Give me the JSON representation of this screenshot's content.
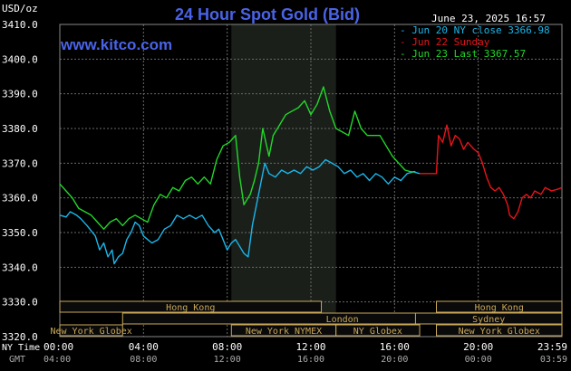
{
  "header": {
    "unit": "USD/oz",
    "title": "24 Hour Spot Gold (Bid)",
    "date": "June 23, 2025 16:57",
    "site": "www.kitco.com"
  },
  "legend": [
    {
      "label": "- Jun 20 NY close 3366.98",
      "color": "#19b7ea"
    },
    {
      "label": "- Jun 22 Sunday",
      "color": "#e8141a"
    },
    {
      "label": "- Jun 23 Last 3367.57",
      "color": "#21d829"
    }
  ],
  "colors": {
    "background": "#000000",
    "grid": "#6a6a6a",
    "axis_text": "#ffffff",
    "title": "#4a63e6",
    "site": "#4a63e6",
    "session_highlight": "#1a1f1a",
    "session_fill": "#0a0a0a",
    "session_border": "#caa85a",
    "session_text": "#caa85a"
  },
  "axis_labels": {
    "ny_time": "NY Time",
    "gmt": "GMT"
  },
  "sessions": [
    {
      "label": "Hong Kong",
      "start": 0,
      "end": 12.5,
      "row": 1
    },
    {
      "label": "London",
      "start": 3,
      "end": 25,
      "row": 2
    },
    {
      "label": "New York Globex",
      "start": 0,
      "end": 3,
      "row": 3
    },
    {
      "label": "New York NYMEX",
      "start": 8.2,
      "end": 13.2,
      "row": 3
    },
    {
      "label": "NY Globex",
      "start": 13.2,
      "end": 17.2,
      "row": 3
    },
    {
      "label": "Hong Kong",
      "start": 18,
      "end": 24,
      "row": 1
    },
    {
      "label": "Sydney",
      "start": 17,
      "end": 24,
      "row": 2
    },
    {
      "label": "New York Globex",
      "start": 18,
      "end": 24,
      "row": 3
    }
  ],
  "chart_data": {
    "type": "line",
    "ylim": [
      3320,
      3410
    ],
    "yticks": [
      3320,
      3330,
      3340,
      3350,
      3360,
      3370,
      3380,
      3390,
      3400,
      3410
    ],
    "ytick_labels": [
      "3320.0",
      "3330.0",
      "3340.0",
      "3350.0",
      "3360.0",
      "3370.0",
      "3380.0",
      "3390.0",
      "3400.0",
      "3410.0"
    ],
    "xlim": [
      0,
      24
    ],
    "xticks": [
      0,
      4,
      8,
      12,
      16,
      20,
      24
    ],
    "xtick_labels_ny": [
      "00:00",
      "04:00",
      "08:00",
      "12:00",
      "16:00",
      "20:00",
      "23:59"
    ],
    "xtick_labels_gmt": [
      "04:00",
      "08:00",
      "12:00",
      "16:00",
      "20:00",
      "00:00",
      "03:59"
    ],
    "highlight_range": [
      8.2,
      13.2
    ],
    "series": [
      {
        "name": "Jun 20 NY close 3366.98",
        "color": "#19b7ea",
        "points": [
          [
            0,
            3355
          ],
          [
            0.3,
            3354.5
          ],
          [
            0.5,
            3356
          ],
          [
            0.8,
            3355
          ],
          [
            1,
            3354
          ],
          [
            1.3,
            3352
          ],
          [
            1.5,
            3350.5
          ],
          [
            1.7,
            3349
          ],
          [
            1.9,
            3345
          ],
          [
            2.1,
            3347
          ],
          [
            2.3,
            3343
          ],
          [
            2.5,
            3345
          ],
          [
            2.6,
            3341
          ],
          [
            2.8,
            3343
          ],
          [
            3,
            3344
          ],
          [
            3.2,
            3348
          ],
          [
            3.4,
            3350
          ],
          [
            3.6,
            3353
          ],
          [
            3.8,
            3352
          ],
          [
            4,
            3349
          ],
          [
            4.2,
            3348
          ],
          [
            4.4,
            3347
          ],
          [
            4.7,
            3348
          ],
          [
            5,
            3351
          ],
          [
            5.3,
            3352
          ],
          [
            5.6,
            3355
          ],
          [
            5.9,
            3354
          ],
          [
            6.2,
            3355
          ],
          [
            6.5,
            3354
          ],
          [
            6.8,
            3355
          ],
          [
            7.1,
            3352
          ],
          [
            7.4,
            3350
          ],
          [
            7.6,
            3351
          ],
          [
            7.8,
            3348
          ],
          [
            8,
            3345
          ],
          [
            8.2,
            3347
          ],
          [
            8.4,
            3348
          ],
          [
            8.6,
            3346
          ],
          [
            8.8,
            3344
          ],
          [
            9,
            3343
          ],
          [
            9.2,
            3352
          ],
          [
            9.4,
            3358
          ],
          [
            9.6,
            3364
          ],
          [
            9.8,
            3370
          ],
          [
            10,
            3367
          ],
          [
            10.3,
            3366
          ],
          [
            10.6,
            3368
          ],
          [
            10.9,
            3367
          ],
          [
            11.2,
            3368
          ],
          [
            11.5,
            3367
          ],
          [
            11.8,
            3369
          ],
          [
            12.1,
            3368
          ],
          [
            12.4,
            3369
          ],
          [
            12.7,
            3371
          ],
          [
            13,
            3370
          ],
          [
            13.3,
            3369
          ],
          [
            13.6,
            3367
          ],
          [
            13.9,
            3368
          ],
          [
            14.2,
            3366
          ],
          [
            14.5,
            3367
          ],
          [
            14.8,
            3365
          ],
          [
            15.1,
            3367
          ],
          [
            15.4,
            3366
          ],
          [
            15.7,
            3364
          ],
          [
            16,
            3366
          ],
          [
            16.3,
            3365
          ],
          [
            16.6,
            3367
          ],
          [
            16.9,
            3367.5
          ],
          [
            17.2,
            3367
          ]
        ]
      },
      {
        "name": "Jun 22 Sunday",
        "color": "#e8141a",
        "points": [
          [
            17.2,
            3367
          ],
          [
            18,
            3367
          ],
          [
            18.1,
            3378
          ],
          [
            18.3,
            3376
          ],
          [
            18.5,
            3381
          ],
          [
            18.7,
            3375
          ],
          [
            18.9,
            3378
          ],
          [
            19.1,
            3377
          ],
          [
            19.3,
            3374
          ],
          [
            19.5,
            3376
          ],
          [
            19.8,
            3374
          ],
          [
            20,
            3373
          ],
          [
            20.2,
            3370
          ],
          [
            20.4,
            3366
          ],
          [
            20.6,
            3363
          ],
          [
            20.8,
            3362
          ],
          [
            21,
            3363
          ],
          [
            21.2,
            3361
          ],
          [
            21.4,
            3358
          ],
          [
            21.5,
            3355
          ],
          [
            21.7,
            3354
          ],
          [
            21.9,
            3356
          ],
          [
            22.1,
            3360
          ],
          [
            22.3,
            3361
          ],
          [
            22.5,
            3360
          ],
          [
            22.7,
            3362
          ],
          [
            23,
            3361
          ],
          [
            23.2,
            3363
          ],
          [
            23.5,
            3362
          ],
          [
            23.8,
            3362.5
          ],
          [
            24,
            3363
          ]
        ]
      },
      {
        "name": "Jun 23 Last 3367.57",
        "color": "#21d829",
        "points": [
          [
            0,
            3364
          ],
          [
            0.3,
            3362
          ],
          [
            0.6,
            3360
          ],
          [
            0.9,
            3357
          ],
          [
            1.2,
            3356
          ],
          [
            1.5,
            3355
          ],
          [
            1.8,
            3353
          ],
          [
            2.1,
            3351
          ],
          [
            2.4,
            3353
          ],
          [
            2.7,
            3354
          ],
          [
            3,
            3352
          ],
          [
            3.3,
            3354
          ],
          [
            3.6,
            3355
          ],
          [
            3.9,
            3354
          ],
          [
            4.2,
            3353
          ],
          [
            4.5,
            3358
          ],
          [
            4.8,
            3361
          ],
          [
            5.1,
            3360
          ],
          [
            5.4,
            3363
          ],
          [
            5.7,
            3362
          ],
          [
            6,
            3365
          ],
          [
            6.3,
            3366
          ],
          [
            6.6,
            3364
          ],
          [
            6.9,
            3366
          ],
          [
            7.2,
            3364
          ],
          [
            7.5,
            3371
          ],
          [
            7.8,
            3375
          ],
          [
            8.1,
            3376
          ],
          [
            8.4,
            3378
          ],
          [
            8.6,
            3366
          ],
          [
            8.8,
            3358
          ],
          [
            9.1,
            3361
          ],
          [
            9.3,
            3365
          ],
          [
            9.5,
            3370
          ],
          [
            9.7,
            3380
          ],
          [
            10,
            3372
          ],
          [
            10.2,
            3378
          ],
          [
            10.5,
            3381
          ],
          [
            10.8,
            3384
          ],
          [
            11.1,
            3385
          ],
          [
            11.4,
            3386
          ],
          [
            11.7,
            3388
          ],
          [
            12,
            3384
          ],
          [
            12.3,
            3387
          ],
          [
            12.6,
            3392
          ],
          [
            12.9,
            3385
          ],
          [
            13.2,
            3380
          ],
          [
            13.5,
            3379
          ],
          [
            13.8,
            3378
          ],
          [
            14.1,
            3385
          ],
          [
            14.4,
            3380
          ],
          [
            14.7,
            3378
          ],
          [
            15,
            3378
          ],
          [
            15.3,
            3378
          ],
          [
            15.6,
            3375
          ],
          [
            15.9,
            3372
          ],
          [
            16.2,
            3370
          ],
          [
            16.5,
            3368
          ],
          [
            16.8,
            3367.5
          ],
          [
            17,
            3367.57
          ]
        ]
      }
    ]
  }
}
